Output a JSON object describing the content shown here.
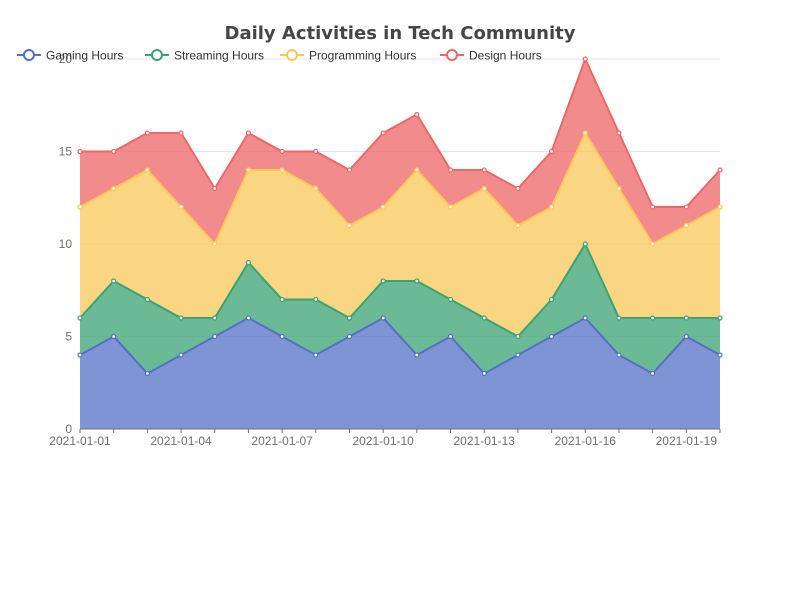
{
  "chart_data": {
    "type": "area",
    "stacked": true,
    "title": "Daily Activities in Tech Community",
    "legend_position": "top-left",
    "grid": true,
    "x": [
      "2021-01-01",
      "2021-01-02",
      "2021-01-03",
      "2021-01-04",
      "2021-01-05",
      "2021-01-06",
      "2021-01-07",
      "2021-01-08",
      "2021-01-09",
      "2021-01-10",
      "2021-01-11",
      "2021-01-12",
      "2021-01-13",
      "2021-01-14",
      "2021-01-15",
      "2021-01-16",
      "2021-01-17",
      "2021-01-18",
      "2021-01-19",
      "2021-01-20"
    ],
    "x_tick_labels": [
      "2021-01-01",
      "2021-01-04",
      "2021-01-07",
      "2021-01-10",
      "2021-01-13",
      "2021-01-16",
      "2021-01-19"
    ],
    "y_tick_labels": [
      "0",
      "5",
      "10",
      "15",
      "20"
    ],
    "ylim": [
      0,
      20
    ],
    "series": [
      {
        "name": "Gaming Hours",
        "color": "#5470c6",
        "values": [
          4,
          5,
          3,
          4,
          5,
          6,
          5,
          4,
          5,
          6,
          4,
          5,
          3,
          4,
          5,
          6,
          4,
          3,
          5,
          4
        ]
      },
      {
        "name": "Streaming Hours",
        "color": "#3ba272",
        "values": [
          2,
          3,
          4,
          2,
          1,
          3,
          2,
          3,
          1,
          2,
          4,
          2,
          3,
          1,
          2,
          4,
          2,
          3,
          1,
          2
        ]
      },
      {
        "name": "Programming Hours",
        "color": "#fac858",
        "values": [
          6,
          5,
          7,
          6,
          4,
          5,
          7,
          6,
          5,
          4,
          6,
          5,
          7,
          6,
          5,
          6,
          7,
          4,
          5,
          6
        ]
      },
      {
        "name": "Design Hours",
        "color": "#ee6666",
        "values": [
          3,
          2,
          2,
          4,
          3,
          2,
          1,
          2,
          3,
          4,
          3,
          2,
          1,
          2,
          3,
          4,
          3,
          2,
          1,
          2
        ]
      }
    ]
  }
}
